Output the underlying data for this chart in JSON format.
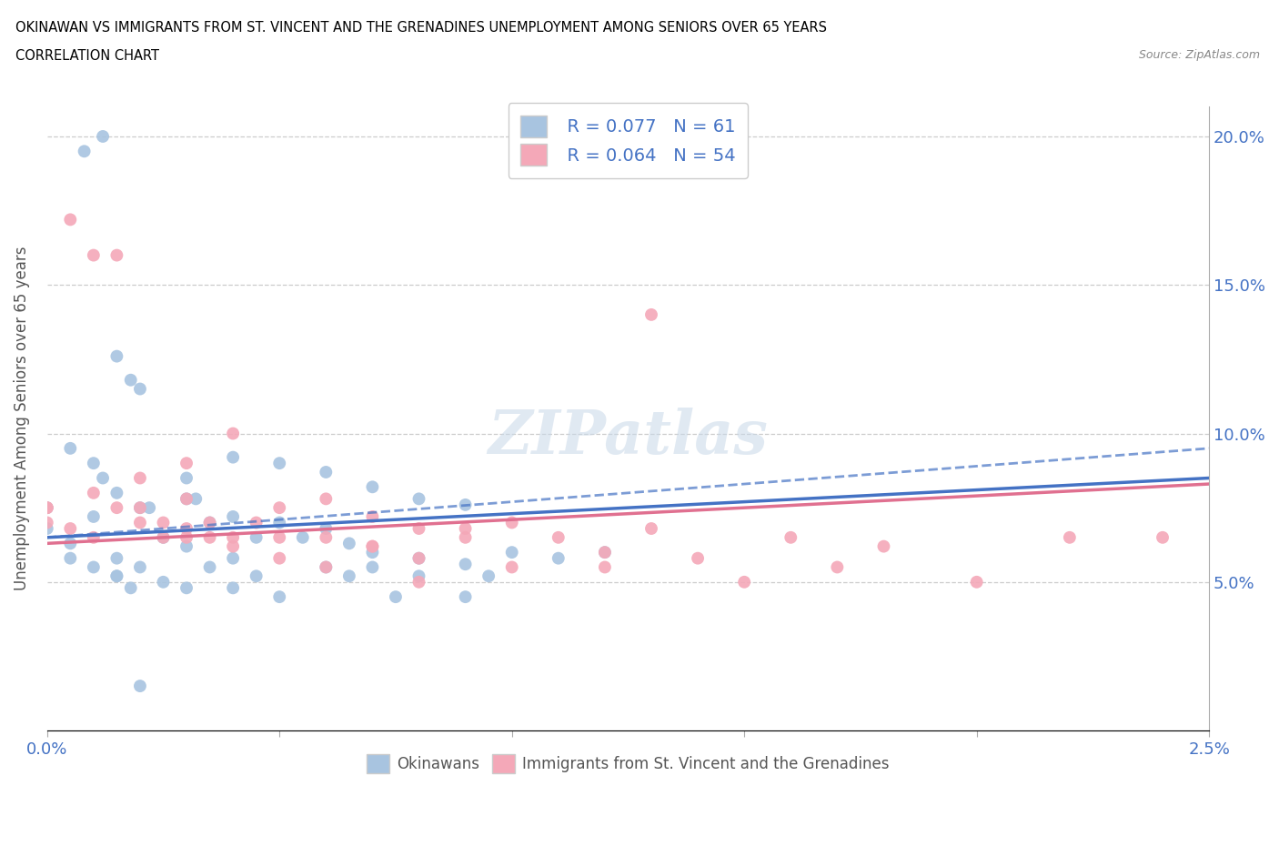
{
  "title_line1": "OKINAWAN VS IMMIGRANTS FROM ST. VINCENT AND THE GRENADINES UNEMPLOYMENT AMONG SENIORS OVER 65 YEARS",
  "title_line2": "CORRELATION CHART",
  "source": "Source: ZipAtlas.com",
  "ylabel": "Unemployment Among Seniors over 65 years",
  "okinawan_color": "#a8c4e0",
  "immigrant_color": "#f4a8b8",
  "okinawan_R": 0.077,
  "okinawan_N": 61,
  "immigrant_R": 0.064,
  "immigrant_N": 54,
  "trend_blue_color": "#4472c4",
  "trend_pink_color": "#e07090",
  "x_min": 0.0,
  "x_max": 0.025,
  "y_min": 0.0,
  "y_max": 0.21,
  "x_ticks": [
    0.0,
    0.005,
    0.01,
    0.015,
    0.02,
    0.025
  ],
  "x_tick_labels": [
    "0.0%",
    "",
    "",
    "",
    "",
    "2.5%"
  ],
  "y_ticks": [
    0.0,
    0.05,
    0.1,
    0.15,
    0.2
  ],
  "y_tick_labels_right": [
    "",
    "5.0%",
    "10.0%",
    "15.0%",
    "20.0%"
  ],
  "watermark": "ZIPatlas",
  "tick_color": "#4472c4",
  "grid_color": "#cccccc",
  "okinawan_x": [
    0.0008,
    0.0012,
    0.0015,
    0.0018,
    0.002,
    0.0005,
    0.001,
    0.0012,
    0.0015,
    0.002,
    0.0022,
    0.003,
    0.003,
    0.0032,
    0.0035,
    0.004,
    0.004,
    0.0045,
    0.005,
    0.005,
    0.0055,
    0.006,
    0.006,
    0.0065,
    0.007,
    0.007,
    0.008,
    0.008,
    0.009,
    0.009,
    0.0,
    0.0,
    0.0005,
    0.0005,
    0.001,
    0.001,
    0.0015,
    0.0015,
    0.002,
    0.0025,
    0.0025,
    0.003,
    0.003,
    0.0035,
    0.004,
    0.004,
    0.0045,
    0.005,
    0.006,
    0.0065,
    0.007,
    0.0075,
    0.008,
    0.009,
    0.0095,
    0.01,
    0.011,
    0.012,
    0.0015,
    0.0018,
    0.002
  ],
  "okinawan_y": [
    0.195,
    0.2,
    0.126,
    0.118,
    0.115,
    0.095,
    0.09,
    0.085,
    0.08,
    0.075,
    0.075,
    0.085,
    0.078,
    0.078,
    0.07,
    0.092,
    0.072,
    0.065,
    0.09,
    0.07,
    0.065,
    0.087,
    0.068,
    0.063,
    0.082,
    0.06,
    0.078,
    0.058,
    0.076,
    0.056,
    0.075,
    0.068,
    0.063,
    0.058,
    0.072,
    0.055,
    0.058,
    0.052,
    0.055,
    0.065,
    0.05,
    0.062,
    0.048,
    0.055,
    0.058,
    0.048,
    0.052,
    0.045,
    0.055,
    0.052,
    0.055,
    0.045,
    0.052,
    0.045,
    0.052,
    0.06,
    0.058,
    0.06,
    0.052,
    0.048,
    0.015
  ],
  "immigrant_x": [
    0.0,
    0.0,
    0.0005,
    0.001,
    0.001,
    0.0015,
    0.002,
    0.002,
    0.0025,
    0.003,
    0.003,
    0.003,
    0.0035,
    0.004,
    0.004,
    0.0045,
    0.005,
    0.005,
    0.006,
    0.006,
    0.007,
    0.007,
    0.008,
    0.008,
    0.009,
    0.01,
    0.011,
    0.012,
    0.013,
    0.014,
    0.016,
    0.018,
    0.022,
    0.0,
    0.0005,
    0.001,
    0.0015,
    0.002,
    0.0025,
    0.003,
    0.0035,
    0.004,
    0.005,
    0.006,
    0.007,
    0.008,
    0.009,
    0.01,
    0.012,
    0.013,
    0.015,
    0.017,
    0.02,
    0.024
  ],
  "immigrant_y": [
    0.075,
    0.07,
    0.172,
    0.16,
    0.065,
    0.16,
    0.075,
    0.07,
    0.07,
    0.09,
    0.078,
    0.065,
    0.07,
    0.1,
    0.065,
    0.07,
    0.075,
    0.065,
    0.078,
    0.065,
    0.072,
    0.062,
    0.068,
    0.058,
    0.065,
    0.07,
    0.065,
    0.06,
    0.068,
    0.058,
    0.065,
    0.062,
    0.065,
    0.075,
    0.068,
    0.08,
    0.075,
    0.085,
    0.065,
    0.068,
    0.065,
    0.062,
    0.058,
    0.055,
    0.062,
    0.05,
    0.068,
    0.055,
    0.055,
    0.14,
    0.05,
    0.055,
    0.05,
    0.065
  ]
}
